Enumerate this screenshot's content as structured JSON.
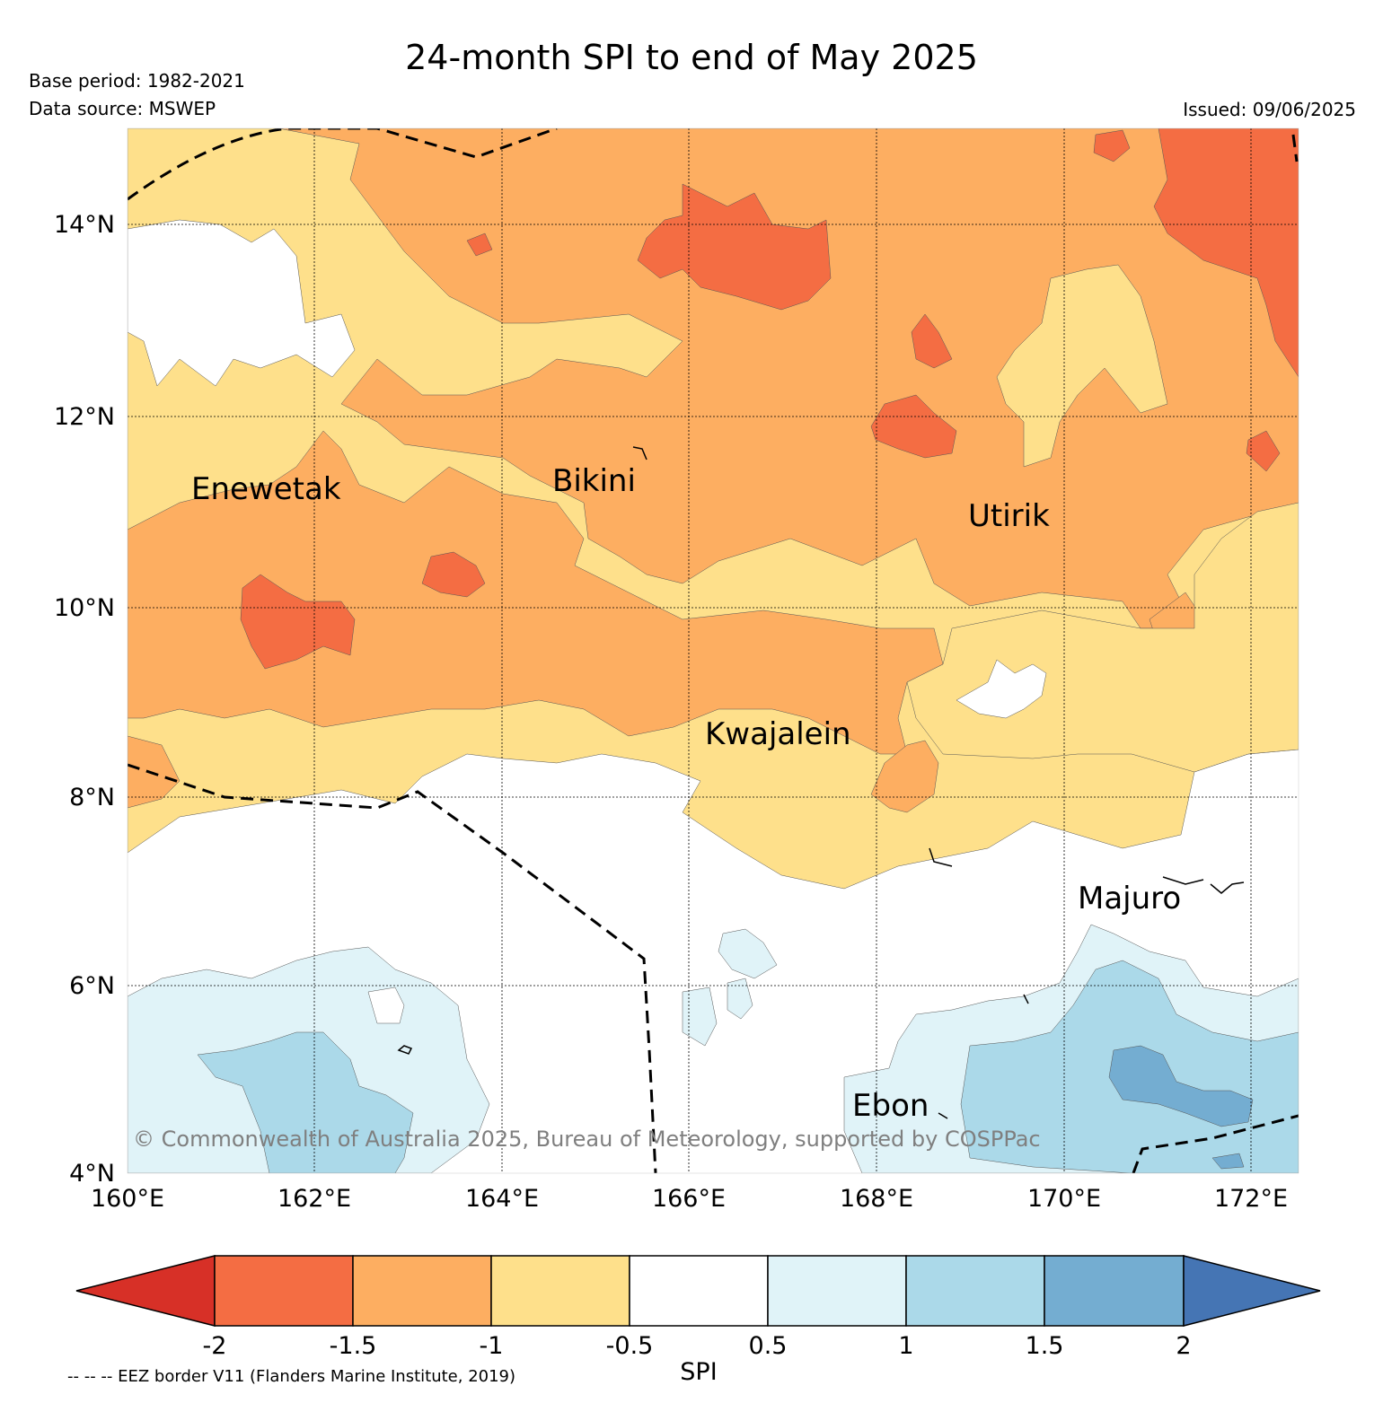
{
  "title": "24-month SPI to end of May 2025",
  "base_period": "Base period: 1982-2021",
  "data_source": "Data source: MSWEP",
  "issued": "Issued: 09/06/2025",
  "copyright": "© Commonwealth of Australia 2025, Bureau of Meteorology, supported by COSPPac",
  "eez_note": "-- -- -- EEZ border V11 (Flanders Marine Institute, 2019)",
  "map": {
    "lat_labels": [
      "14°N",
      "12°N",
      "10°N",
      "8°N",
      "6°N",
      "4°N"
    ],
    "lon_labels": [
      "160°E",
      "162°E",
      "164°E",
      "166°E",
      "168°E",
      "170°E",
      "172°E"
    ],
    "places": [
      "Enewetak",
      "Bikini",
      "Utirik",
      "Kwajalein",
      "Majuro",
      "Ebon"
    ]
  },
  "colorbar": {
    "label": "SPI",
    "ticks": [
      "-2",
      "-1.5",
      "-1",
      "-0.5",
      "0.5",
      "1",
      "1.5",
      "2"
    ],
    "colors": [
      "#d73027",
      "#f46d43",
      "#fdae61",
      "#fee08b",
      "#ffffff",
      "#e0f3f8",
      "#abd9e9",
      "#74add1",
      "#4575b4"
    ]
  }
}
